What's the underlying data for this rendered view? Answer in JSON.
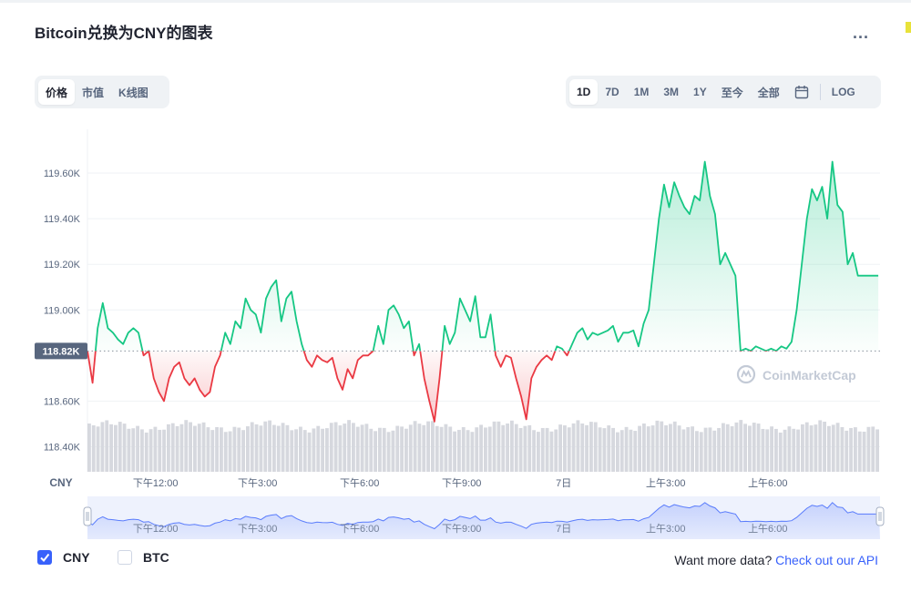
{
  "header": {
    "title": "Bitcoin兑换为CNY的图表",
    "more_label": "..."
  },
  "toolbar": {
    "left_tabs": [
      {
        "label": "价格",
        "active": true
      },
      {
        "label": "市值",
        "active": false
      },
      {
        "label": "K线图",
        "active": false
      }
    ],
    "right_tabs": [
      {
        "label": "1D",
        "active": true
      },
      {
        "label": "7D",
        "active": false
      },
      {
        "label": "1M",
        "active": false
      },
      {
        "label": "3M",
        "active": false
      },
      {
        "label": "1Y",
        "active": false
      },
      {
        "label": "至今",
        "active": false
      },
      {
        "label": "全部",
        "active": false
      }
    ],
    "calendar_icon": "calendar-icon",
    "log_label": "LOG"
  },
  "colors": {
    "up": "#16c784",
    "down": "#ea3943",
    "accent": "#3861fb",
    "volume": "#d6d8de",
    "axis_text": "#58667e"
  },
  "chart_data": {
    "type": "line",
    "currency_label": "CNY",
    "watermark": "CoinMarketCap",
    "y_ticks": [
      "119.60K",
      "119.40K",
      "119.20K",
      "119.00K",
      "118.60K",
      "118.40K"
    ],
    "y_tick_values": [
      119600,
      119400,
      119200,
      119000,
      118600,
      118400
    ],
    "ylim": [
      118290,
      119760
    ],
    "reference_label": "118.82K",
    "reference_value": 118820,
    "x_labels": [
      "下午12:00",
      "下午3:00",
      "下午6:00",
      "下午9:00",
      "7日",
      "上午3:00",
      "上午6:00"
    ],
    "x_label_hours": [
      2,
      5,
      8,
      11,
      14,
      17,
      20
    ],
    "x_range_hours": [
      0,
      23.3
    ],
    "grid": true,
    "series": [
      {
        "x": [
          0,
          0.15,
          0.3,
          0.45,
          0.6,
          0.75,
          0.9,
          1.05,
          1.2,
          1.35,
          1.5,
          1.65,
          1.8,
          1.95,
          2.1,
          2.25,
          2.4,
          2.55,
          2.7,
          2.85,
          3.0,
          3.15,
          3.3,
          3.45,
          3.6,
          3.75,
          3.9,
          4.05,
          4.2,
          4.35,
          4.5,
          4.65,
          4.8,
          4.95,
          5.1,
          5.25,
          5.4,
          5.55,
          5.7,
          5.85,
          6.0,
          6.15,
          6.3,
          6.45,
          6.6,
          6.75,
          6.9,
          7.05,
          7.2,
          7.35,
          7.5,
          7.65,
          7.8,
          7.95,
          8.1,
          8.25,
          8.4,
          8.55,
          8.7,
          8.85,
          9.0,
          9.15,
          9.3,
          9.45,
          9.6,
          9.75,
          9.9,
          10.05,
          10.2,
          10.35,
          10.5,
          10.65,
          10.8,
          10.95,
          11.1,
          11.25,
          11.4,
          11.55,
          11.7,
          11.85,
          12.0,
          12.15,
          12.3,
          12.45,
          12.6,
          12.75,
          12.9,
          13.05,
          13.2,
          13.35,
          13.5,
          13.65,
          13.8,
          13.95,
          14.1,
          14.25,
          14.4,
          14.55,
          14.7,
          14.85,
          15.0,
          15.15,
          15.3,
          15.45,
          15.6,
          15.75,
          15.9,
          16.05,
          16.2,
          16.35,
          16.5,
          16.65,
          16.8,
          16.95,
          17.1,
          17.25,
          17.4,
          17.55,
          17.7,
          17.85,
          18.0,
          18.15,
          18.3,
          18.45,
          18.6,
          18.75,
          18.9,
          19.05,
          19.2,
          19.35,
          19.5,
          19.65,
          19.8,
          19.95,
          20.1,
          20.25,
          20.4,
          20.55,
          20.7,
          20.85,
          21.0,
          21.15,
          21.3,
          21.45,
          21.6,
          21.75,
          21.9,
          22.05,
          22.2,
          22.35,
          22.5,
          22.65,
          22.8,
          22.95,
          23.1,
          23.25
        ],
        "y": [
          118820,
          118680,
          118920,
          119030,
          118920,
          118900,
          118870,
          118850,
          118900,
          118920,
          118900,
          118800,
          118820,
          118700,
          118640,
          118600,
          118700,
          118750,
          118770,
          118700,
          118670,
          118700,
          118650,
          118620,
          118640,
          118750,
          118800,
          118900,
          118850,
          118950,
          118920,
          119050,
          119000,
          118980,
          118900,
          119050,
          119100,
          119130,
          118950,
          119050,
          119080,
          118950,
          118850,
          118780,
          118750,
          118800,
          118780,
          118770,
          118790,
          118700,
          118650,
          118740,
          118700,
          118780,
          118800,
          118800,
          118820,
          118930,
          118850,
          119000,
          119020,
          118980,
          118920,
          118950,
          118800,
          118850,
          118700,
          118600,
          118510,
          118700,
          118930,
          118850,
          118900,
          119050,
          119000,
          118950,
          119060,
          118880,
          118880,
          118980,
          118800,
          118750,
          118800,
          118790,
          118700,
          118620,
          118520,
          118700,
          118750,
          118780,
          118800,
          118780,
          118840,
          118830,
          118800,
          118850,
          118900,
          118920,
          118870,
          118900,
          118890,
          118900,
          118910,
          118930,
          118860,
          118900,
          118900,
          118910,
          118840,
          118940,
          119000,
          119200,
          119400,
          119550,
          119450,
          119560,
          119500,
          119450,
          119420,
          119500,
          119480,
          119650,
          119500,
          119420,
          119200,
          119250,
          119200,
          119150,
          118820,
          118830,
          118820,
          118840,
          118830,
          118820,
          118830,
          118820,
          118840,
          118830,
          118860,
          119000,
          119200,
          119400,
          119530,
          119480,
          119540,
          119400,
          119650,
          119460,
          119430,
          119200,
          119250,
          119150,
          119150,
          119150,
          119150,
          119150
        ]
      }
    ],
    "volume_bar_count": 180
  },
  "footer": {
    "cny_label": "CNY",
    "cny_checked": true,
    "btc_label": "BTC",
    "btc_checked": false,
    "more_data_text": "Want more data?",
    "api_link_text": "Check out our API"
  }
}
